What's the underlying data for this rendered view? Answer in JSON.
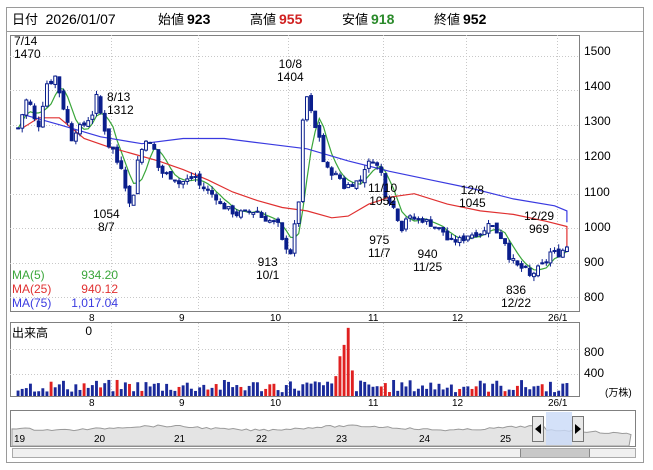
{
  "header": {
    "date_label": "日付",
    "date_value": "2026/01/07",
    "open_label": "始値",
    "open_value": "923",
    "high_label": "高値",
    "high_value": "955",
    "low_label": "安値",
    "low_value": "918",
    "close_label": "終値",
    "close_value": "952"
  },
  "colors": {
    "up": "#0a1e8c",
    "down": "#0a1e8c",
    "up_fill": "#ffffff",
    "ma5": "#3aa63a",
    "ma25": "#e03030",
    "ma75": "#3a3ae0",
    "volume_up": "#e02020",
    "volume": "#1a2a9a",
    "grid": "#c8c8c8",
    "high_value": "#d02020",
    "low_value": "#2a8a2a"
  },
  "legend": [
    {
      "name": "MA(5)",
      "value": "934.20",
      "color": "#3aa63a"
    },
    {
      "name": "MA(25)",
      "value": "940.12",
      "color": "#e03030"
    },
    {
      "name": "MA(75)",
      "value": "1,017.04",
      "color": "#3a3ae0"
    }
  ],
  "annotations": [
    {
      "date": "7/14",
      "value": "1470"
    },
    {
      "date": "8/13",
      "value": "1312"
    },
    {
      "date": "8/7",
      "value": "1054"
    },
    {
      "date": "10/8",
      "value": "1404"
    },
    {
      "date": "10/1",
      "value": "913"
    },
    {
      "date": "11/10",
      "value": "1052"
    },
    {
      "date": "11/7",
      "value": "975"
    },
    {
      "date": "11/25",
      "value": "940"
    },
    {
      "date": "12/8",
      "value": "1045"
    },
    {
      "date": "12/29",
      "value": "969"
    },
    {
      "date": "12/22",
      "value": "836"
    }
  ],
  "volume_panel": {
    "label": "出来高",
    "value": "0",
    "unit": "(万株)",
    "ticks": [
      "800",
      "400"
    ]
  },
  "navigator": {
    "ticks": [
      "19",
      "20",
      "21",
      "22",
      "23",
      "24",
      "25"
    ]
  },
  "chart_data": {
    "type": "candlestick",
    "x_ticks": [
      "8",
      "9",
      "10",
      "11",
      "12",
      "26/1"
    ],
    "y_ticks": [
      "1500",
      "1400",
      "1300",
      "1200",
      "1100",
      "1000",
      "900",
      "800"
    ],
    "ylim": [
      760,
      1560
    ],
    "anchors": [
      {
        "date": "07/01",
        "v": 1290
      },
      {
        "date": "07/03",
        "v": 1370
      },
      {
        "date": "07/08",
        "v": 1300
      },
      {
        "date": "07/10",
        "v": 1420
      },
      {
        "date": "07/14",
        "v": 1440
      },
      {
        "date": "07/18",
        "v": 1260
      },
      {
        "date": "07/23",
        "v": 1300
      },
      {
        "date": "07/28",
        "v": 1380
      },
      {
        "date": "07/31",
        "v": 1240
      },
      {
        "date": "08/05",
        "v": 1180
      },
      {
        "date": "08/07",
        "v": 1070
      },
      {
        "date": "08/13",
        "v": 1260
      },
      {
        "date": "08/19",
        "v": 1160
      },
      {
        "date": "08/25",
        "v": 1130
      },
      {
        "date": "08/29",
        "v": 1150
      },
      {
        "date": "09/05",
        "v": 1090
      },
      {
        "date": "09/12",
        "v": 1040
      },
      {
        "date": "09/19",
        "v": 1050
      },
      {
        "date": "09/26",
        "v": 1010
      },
      {
        "date": "10/01",
        "v": 930
      },
      {
        "date": "10/03",
        "v": 1080
      },
      {
        "date": "10/07",
        "v": 1380
      },
      {
        "date": "10/09",
        "v": 1290
      },
      {
        "date": "10/14",
        "v": 1170
      },
      {
        "date": "10/20",
        "v": 1120
      },
      {
        "date": "10/24",
        "v": 1140
      },
      {
        "date": "10/29",
        "v": 1200
      },
      {
        "date": "11/05",
        "v": 1060
      },
      {
        "date": "11/07",
        "v": 1000
      },
      {
        "date": "11/10",
        "v": 1030
      },
      {
        "date": "11/17",
        "v": 1020
      },
      {
        "date": "11/21",
        "v": 990
      },
      {
        "date": "11/25",
        "v": 960
      },
      {
        "date": "12/01",
        "v": 980
      },
      {
        "date": "12/05",
        "v": 990
      },
      {
        "date": "12/08",
        "v": 1020
      },
      {
        "date": "12/12",
        "v": 960
      },
      {
        "date": "12/17",
        "v": 890
      },
      {
        "date": "12/22",
        "v": 860
      },
      {
        "date": "12/26",
        "v": 905
      },
      {
        "date": "12/29",
        "v": 930
      },
      {
        "date": "01/05",
        "v": 925
      },
      {
        "date": "01/07",
        "v": 948
      }
    ],
    "ma25_points": [
      [
        1,
        1290
      ],
      [
        5,
        1320
      ],
      [
        10,
        1320
      ],
      [
        16,
        1260
      ],
      [
        22,
        1235
      ],
      [
        28,
        1215
      ],
      [
        34,
        1195
      ],
      [
        40,
        1170
      ],
      [
        46,
        1140
      ],
      [
        52,
        1105
      ],
      [
        58,
        1080
      ],
      [
        64,
        1060
      ],
      [
        70,
        1050
      ],
      [
        76,
        1030
      ],
      [
        80,
        1035
      ],
      [
        85,
        1070
      ],
      [
        90,
        1090
      ],
      [
        96,
        1100
      ],
      [
        104,
        1070
      ],
      [
        112,
        1050
      ],
      [
        120,
        1040
      ],
      [
        128,
        1020
      ],
      [
        136,
        1005
      ],
      [
        144,
        990
      ],
      [
        152,
        970
      ],
      [
        158,
        950
      ],
      [
        165,
        940
      ]
    ],
    "ma75_points": [
      [
        1,
        1330
      ],
      [
        10,
        1300
      ],
      [
        20,
        1265
      ],
      [
        30,
        1245
      ],
      [
        40,
        1260
      ],
      [
        50,
        1260
      ],
      [
        60,
        1245
      ],
      [
        70,
        1230
      ],
      [
        80,
        1195
      ],
      [
        90,
        1165
      ],
      [
        100,
        1140
      ],
      [
        110,
        1115
      ],
      [
        120,
        1085
      ],
      [
        130,
        1065
      ],
      [
        140,
        1050
      ],
      [
        150,
        1040
      ],
      [
        158,
        1025
      ],
      [
        165,
        1017
      ]
    ],
    "volume_spikes": [
      [
        77,
        0.28
      ],
      [
        78,
        0.56
      ],
      [
        79,
        0.72
      ],
      [
        80,
        0.96
      ],
      [
        81,
        0.36
      ]
    ]
  }
}
